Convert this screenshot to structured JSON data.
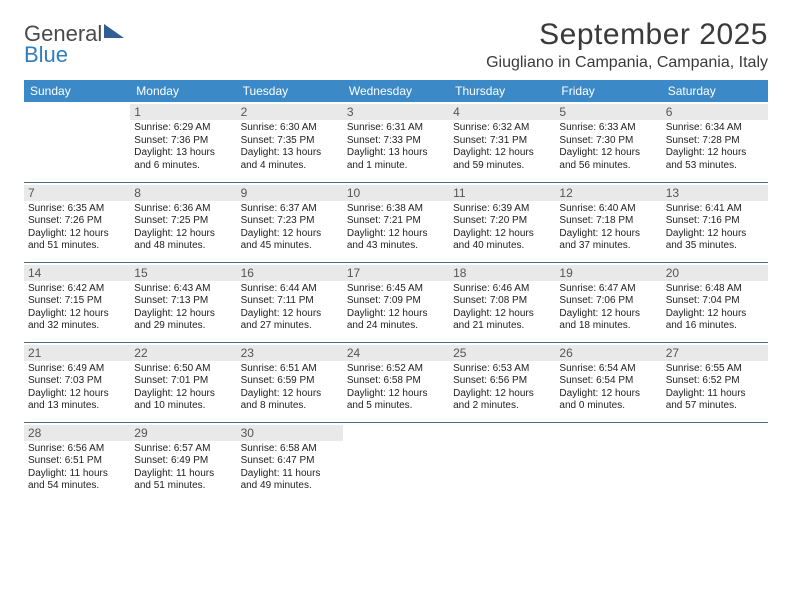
{
  "logo": {
    "text_main": "General",
    "text_sub": "Blue"
  },
  "header": {
    "title": "September 2025",
    "subtitle": "Giugliano in Campania, Campania, Italy"
  },
  "colors": {
    "header_bg": "#3b89c7",
    "header_text": "#ffffff",
    "daynum_bg": "#e9e9e9",
    "daynum_text": "#555555",
    "row_divider": "#4a6a88",
    "body_text": "#222222",
    "title_text": "#3a3a3a",
    "logo_gray": "#4a4a4a",
    "logo_blue": "#2f7ec0"
  },
  "typography": {
    "title_fontsize": 30,
    "subtitle_fontsize": 16,
    "weekday_fontsize": 12,
    "daynum_fontsize": 12,
    "cell_fontsize": 10
  },
  "weekdays": [
    "Sunday",
    "Monday",
    "Tuesday",
    "Wednesday",
    "Thursday",
    "Friday",
    "Saturday"
  ],
  "weeks": [
    [
      {
        "day": "",
        "sunrise": "",
        "sunset": "",
        "daylight": ""
      },
      {
        "day": "1",
        "sunrise": "Sunrise: 6:29 AM",
        "sunset": "Sunset: 7:36 PM",
        "daylight": "Daylight: 13 hours and 6 minutes."
      },
      {
        "day": "2",
        "sunrise": "Sunrise: 6:30 AM",
        "sunset": "Sunset: 7:35 PM",
        "daylight": "Daylight: 13 hours and 4 minutes."
      },
      {
        "day": "3",
        "sunrise": "Sunrise: 6:31 AM",
        "sunset": "Sunset: 7:33 PM",
        "daylight": "Daylight: 13 hours and 1 minute."
      },
      {
        "day": "4",
        "sunrise": "Sunrise: 6:32 AM",
        "sunset": "Sunset: 7:31 PM",
        "daylight": "Daylight: 12 hours and 59 minutes."
      },
      {
        "day": "5",
        "sunrise": "Sunrise: 6:33 AM",
        "sunset": "Sunset: 7:30 PM",
        "daylight": "Daylight: 12 hours and 56 minutes."
      },
      {
        "day": "6",
        "sunrise": "Sunrise: 6:34 AM",
        "sunset": "Sunset: 7:28 PM",
        "daylight": "Daylight: 12 hours and 53 minutes."
      }
    ],
    [
      {
        "day": "7",
        "sunrise": "Sunrise: 6:35 AM",
        "sunset": "Sunset: 7:26 PM",
        "daylight": "Daylight: 12 hours and 51 minutes."
      },
      {
        "day": "8",
        "sunrise": "Sunrise: 6:36 AM",
        "sunset": "Sunset: 7:25 PM",
        "daylight": "Daylight: 12 hours and 48 minutes."
      },
      {
        "day": "9",
        "sunrise": "Sunrise: 6:37 AM",
        "sunset": "Sunset: 7:23 PM",
        "daylight": "Daylight: 12 hours and 45 minutes."
      },
      {
        "day": "10",
        "sunrise": "Sunrise: 6:38 AM",
        "sunset": "Sunset: 7:21 PM",
        "daylight": "Daylight: 12 hours and 43 minutes."
      },
      {
        "day": "11",
        "sunrise": "Sunrise: 6:39 AM",
        "sunset": "Sunset: 7:20 PM",
        "daylight": "Daylight: 12 hours and 40 minutes."
      },
      {
        "day": "12",
        "sunrise": "Sunrise: 6:40 AM",
        "sunset": "Sunset: 7:18 PM",
        "daylight": "Daylight: 12 hours and 37 minutes."
      },
      {
        "day": "13",
        "sunrise": "Sunrise: 6:41 AM",
        "sunset": "Sunset: 7:16 PM",
        "daylight": "Daylight: 12 hours and 35 minutes."
      }
    ],
    [
      {
        "day": "14",
        "sunrise": "Sunrise: 6:42 AM",
        "sunset": "Sunset: 7:15 PM",
        "daylight": "Daylight: 12 hours and 32 minutes."
      },
      {
        "day": "15",
        "sunrise": "Sunrise: 6:43 AM",
        "sunset": "Sunset: 7:13 PM",
        "daylight": "Daylight: 12 hours and 29 minutes."
      },
      {
        "day": "16",
        "sunrise": "Sunrise: 6:44 AM",
        "sunset": "Sunset: 7:11 PM",
        "daylight": "Daylight: 12 hours and 27 minutes."
      },
      {
        "day": "17",
        "sunrise": "Sunrise: 6:45 AM",
        "sunset": "Sunset: 7:09 PM",
        "daylight": "Daylight: 12 hours and 24 minutes."
      },
      {
        "day": "18",
        "sunrise": "Sunrise: 6:46 AM",
        "sunset": "Sunset: 7:08 PM",
        "daylight": "Daylight: 12 hours and 21 minutes."
      },
      {
        "day": "19",
        "sunrise": "Sunrise: 6:47 AM",
        "sunset": "Sunset: 7:06 PM",
        "daylight": "Daylight: 12 hours and 18 minutes."
      },
      {
        "day": "20",
        "sunrise": "Sunrise: 6:48 AM",
        "sunset": "Sunset: 7:04 PM",
        "daylight": "Daylight: 12 hours and 16 minutes."
      }
    ],
    [
      {
        "day": "21",
        "sunrise": "Sunrise: 6:49 AM",
        "sunset": "Sunset: 7:03 PM",
        "daylight": "Daylight: 12 hours and 13 minutes."
      },
      {
        "day": "22",
        "sunrise": "Sunrise: 6:50 AM",
        "sunset": "Sunset: 7:01 PM",
        "daylight": "Daylight: 12 hours and 10 minutes."
      },
      {
        "day": "23",
        "sunrise": "Sunrise: 6:51 AM",
        "sunset": "Sunset: 6:59 PM",
        "daylight": "Daylight: 12 hours and 8 minutes."
      },
      {
        "day": "24",
        "sunrise": "Sunrise: 6:52 AM",
        "sunset": "Sunset: 6:58 PM",
        "daylight": "Daylight: 12 hours and 5 minutes."
      },
      {
        "day": "25",
        "sunrise": "Sunrise: 6:53 AM",
        "sunset": "Sunset: 6:56 PM",
        "daylight": "Daylight: 12 hours and 2 minutes."
      },
      {
        "day": "26",
        "sunrise": "Sunrise: 6:54 AM",
        "sunset": "Sunset: 6:54 PM",
        "daylight": "Daylight: 12 hours and 0 minutes."
      },
      {
        "day": "27",
        "sunrise": "Sunrise: 6:55 AM",
        "sunset": "Sunset: 6:52 PM",
        "daylight": "Daylight: 11 hours and 57 minutes."
      }
    ],
    [
      {
        "day": "28",
        "sunrise": "Sunrise: 6:56 AM",
        "sunset": "Sunset: 6:51 PM",
        "daylight": "Daylight: 11 hours and 54 minutes."
      },
      {
        "day": "29",
        "sunrise": "Sunrise: 6:57 AM",
        "sunset": "Sunset: 6:49 PM",
        "daylight": "Daylight: 11 hours and 51 minutes."
      },
      {
        "day": "30",
        "sunrise": "Sunrise: 6:58 AM",
        "sunset": "Sunset: 6:47 PM",
        "daylight": "Daylight: 11 hours and 49 minutes."
      },
      {
        "day": "",
        "sunrise": "",
        "sunset": "",
        "daylight": ""
      },
      {
        "day": "",
        "sunrise": "",
        "sunset": "",
        "daylight": ""
      },
      {
        "day": "",
        "sunrise": "",
        "sunset": "",
        "daylight": ""
      },
      {
        "day": "",
        "sunrise": "",
        "sunset": "",
        "daylight": ""
      }
    ]
  ]
}
